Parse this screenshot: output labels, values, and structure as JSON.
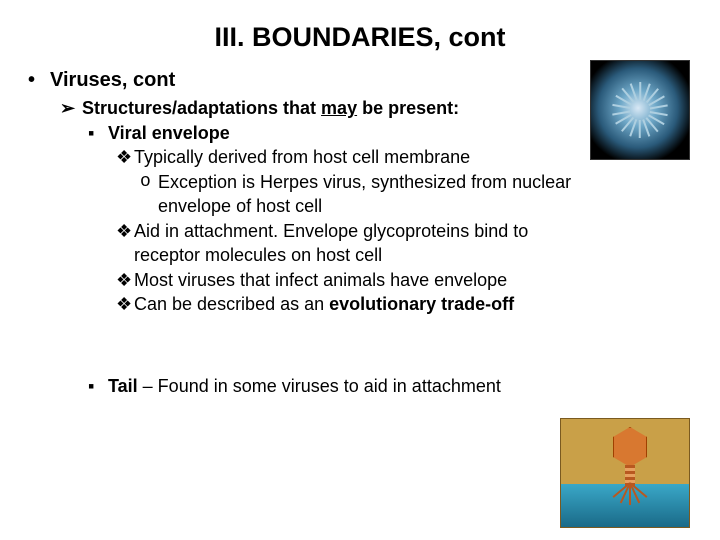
{
  "title": "III.  BOUNDARIES, cont",
  "lvl1": {
    "bullet": "•",
    "text": "Viruses, cont"
  },
  "lvl2": {
    "bullet": "➢",
    "prefix": "Structures/adaptations that ",
    "underlined": "may",
    "suffix": " be present:"
  },
  "envelope": {
    "bullet": "▪",
    "label": "Viral envelope",
    "items": [
      {
        "bullet": "❖",
        "text": "Typically derived from host cell membrane"
      },
      {
        "bullet": "❖",
        "text_a": "Aid in attachment.  Envelope glycoproteins bind to",
        "text_b": "receptor molecules on host cell"
      },
      {
        "bullet": "❖",
        "text": "Most viruses that infect animals have envelope"
      },
      {
        "bullet": "❖",
        "text_a": "Can be described as an ",
        "bold": "evolutionary trade-off"
      }
    ],
    "exception": {
      "bullet": "o",
      "text_a": "Exception is Herpes virus, synthesized from nuclear",
      "text_b": "envelope of host cell"
    }
  },
  "tail": {
    "bullet": "▪",
    "bold": "Tail",
    "text": " – Found in some viruses to aid in attachment"
  },
  "colors": {
    "text": "#000000",
    "background": "#ffffff"
  },
  "images": {
    "top_right": "enveloped-virus-illustration",
    "bottom_right": "bacteriophage-illustration"
  }
}
